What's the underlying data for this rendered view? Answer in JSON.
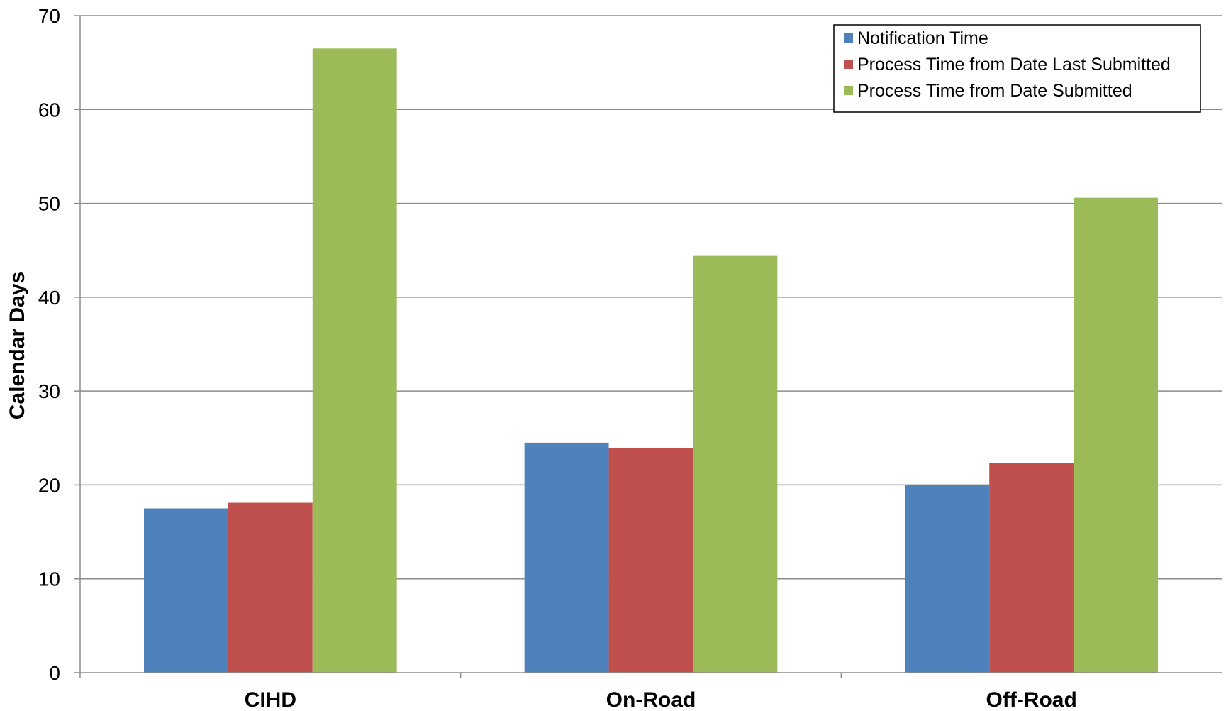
{
  "chart_data": {
    "type": "bar",
    "title": "",
    "xlabel": "",
    "ylabel": "Calendar Days",
    "ylim": [
      0,
      70
    ],
    "yticks": [
      0,
      10,
      20,
      30,
      40,
      50,
      60,
      70
    ],
    "grid": true,
    "legend_position": "top-right",
    "categories": [
      "CIHD",
      "On-Road",
      "Off-Road"
    ],
    "series": [
      {
        "name": "Notification Time",
        "color": "#4F81BD",
        "values": [
          17.5,
          24.5,
          20.0
        ]
      },
      {
        "name": "Process Time from Date Last Submitted",
        "color": "#C0504D",
        "values": [
          18.1,
          23.9,
          22.3
        ]
      },
      {
        "name": "Process Time from Date Submitted",
        "color": "#9BBB59",
        "values": [
          66.5,
          44.4,
          50.6
        ]
      }
    ]
  }
}
